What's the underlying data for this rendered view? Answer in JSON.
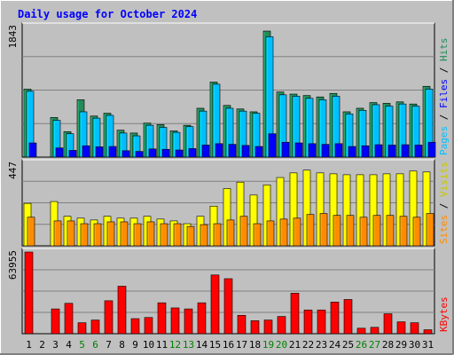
{
  "title": "Daily usage for October 2024",
  "chart_data": [
    {
      "type": "bar",
      "panel": "hits-files-pages",
      "ymax_label": "1843",
      "ylim": [
        0,
        1843
      ],
      "side_label": {
        "pages": "Pages",
        "sep1": " / ",
        "files": "Files",
        "sep2": " / ",
        "hits": "Hits"
      },
      "categories": [
        "1",
        "2",
        "3",
        "4",
        "5",
        "6",
        "7",
        "8",
        "9",
        "10",
        "11",
        "12",
        "13",
        "14",
        "15",
        "16",
        "17",
        "18",
        "19",
        "20",
        "21",
        "22",
        "23",
        "24",
        "25",
        "26",
        "27",
        "28",
        "29",
        "30",
        "31"
      ],
      "series": [
        {
          "name": "Hits",
          "color": "#228b5a",
          "values": [
            960,
            0,
            560,
            360,
            810,
            580,
            620,
            380,
            340,
            480,
            460,
            370,
            450,
            690,
            1060,
            730,
            680,
            640,
            1780,
            920,
            890,
            870,
            850,
            900,
            640,
            690,
            770,
            760,
            780,
            750,
            1000
          ]
        },
        {
          "name": "Files",
          "color": "#00bfff",
          "values": [
            930,
            0,
            520,
            330,
            640,
            550,
            590,
            340,
            300,
            450,
            420,
            350,
            430,
            650,
            1030,
            690,
            650,
            620,
            1700,
            880,
            860,
            830,
            810,
            860,
            610,
            660,
            740,
            720,
            750,
            720,
            960
          ]
        },
        {
          "name": "Pages",
          "color": "#0000ff",
          "values": [
            200,
            0,
            130,
            95,
            160,
            145,
            150,
            90,
            80,
            115,
            110,
            100,
            120,
            170,
            190,
            180,
            165,
            150,
            330,
            210,
            200,
            190,
            180,
            190,
            150,
            160,
            175,
            170,
            175,
            170,
            210
          ]
        }
      ]
    },
    {
      "type": "bar",
      "panel": "visits-sites",
      "ymax_label": "447",
      "ylim": [
        0,
        447
      ],
      "side_label": {
        "sites": "Sites",
        "sep": " / ",
        "visits": "Visits"
      },
      "categories": [
        "1",
        "2",
        "3",
        "4",
        "5",
        "6",
        "7",
        "8",
        "9",
        "10",
        "11",
        "12",
        "13",
        "14",
        "15",
        "16",
        "17",
        "18",
        "19",
        "20",
        "21",
        "22",
        "23",
        "24",
        "25",
        "26",
        "27",
        "28",
        "29",
        "30",
        "31"
      ],
      "series": [
        {
          "name": "Visits",
          "color": "#ffff00",
          "values": [
            230,
            0,
            240,
            160,
            150,
            140,
            160,
            150,
            150,
            160,
            145,
            135,
            120,
            160,
            215,
            310,
            345,
            275,
            330,
            370,
            395,
            410,
            395,
            390,
            385,
            385,
            385,
            390,
            390,
            405,
            400
          ]
        },
        {
          "name": "Sites",
          "color": "#ff8c00",
          "values": [
            155,
            0,
            135,
            135,
            120,
            120,
            130,
            130,
            120,
            130,
            120,
            120,
            105,
            115,
            120,
            140,
            160,
            120,
            135,
            145,
            150,
            170,
            175,
            165,
            165,
            155,
            165,
            165,
            160,
            155,
            175
          ]
        }
      ]
    },
    {
      "type": "bar",
      "panel": "kbytes",
      "ymax_label": "63955",
      "ylim": [
        0,
        63955
      ],
      "side_label": {
        "kbytes": "KBytes"
      },
      "categories": [
        "1",
        "2",
        "3",
        "4",
        "5",
        "6",
        "7",
        "8",
        "9",
        "10",
        "11",
        "12",
        "13",
        "14",
        "15",
        "16",
        "17",
        "18",
        "19",
        "20",
        "21",
        "22",
        "23",
        "24",
        "25",
        "26",
        "27",
        "28",
        "29",
        "30",
        "31"
      ],
      "series": [
        {
          "name": "KBytes",
          "color": "#ff0000",
          "values": [
            63955,
            0,
            19400,
            23800,
            8600,
            10700,
            25800,
            37200,
            11800,
            12700,
            24200,
            20200,
            19400,
            24200,
            46000,
            43100,
            14400,
            10200,
            10700,
            13500,
            31700,
            18600,
            18600,
            24800,
            26800,
            4300,
            5000,
            15600,
            9300,
            8600,
            3100
          ]
        }
      ]
    }
  ],
  "x_label_colors": {
    "weekday": "#000000",
    "weekend": "#008000"
  },
  "weekend_days": [
    "5",
    "6",
    "12",
    "13",
    "19",
    "20",
    "26",
    "27"
  ]
}
